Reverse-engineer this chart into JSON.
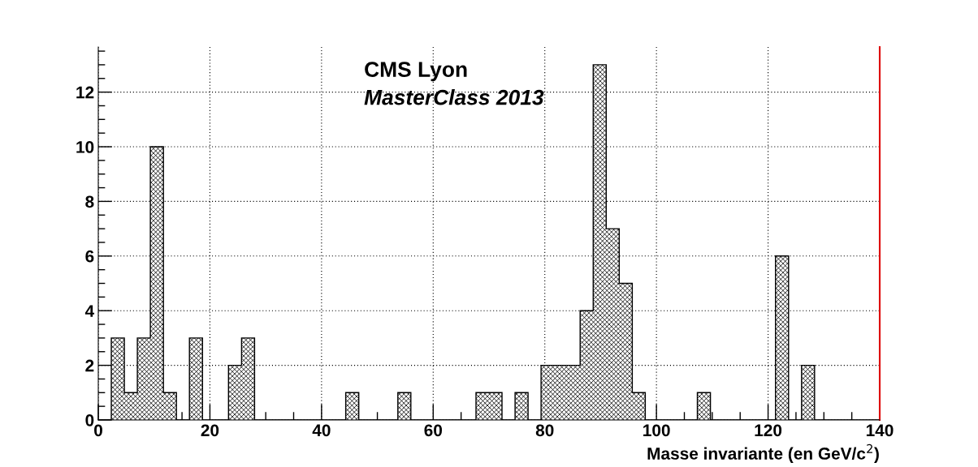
{
  "chart_data": {
    "type": "histogram",
    "xlabel": "Masse invariante (en GeV/c$^{2}$)",
    "annotations": [
      "CMS Lyon",
      "MasterClass 2013"
    ],
    "bins": [
      0,
      2.33,
      4.67,
      7,
      9.33,
      11.67,
      14,
      16.33,
      18.67,
      21,
      23.33,
      25.67,
      28,
      30.33,
      32.67,
      35,
      37.33,
      39.67,
      42,
      44.33,
      46.67,
      49,
      51.33,
      53.67,
      56,
      58.33,
      60.67,
      63,
      65.33,
      67.67,
      70,
      72.33,
      74.67,
      77,
      79.33,
      81.67,
      84,
      86.33,
      88.67,
      91,
      93.33,
      95.67,
      98,
      100.33,
      102.67,
      105,
      107.33,
      109.67,
      112,
      114.33,
      116.67,
      119,
      121.33,
      123.67,
      126,
      128.33,
      130.67,
      133,
      135.33,
      137.67,
      140
    ],
    "values": [
      0,
      3,
      1,
      3,
      10,
      1,
      0,
      3,
      0,
      0,
      2,
      3,
      0,
      0,
      0,
      0,
      0,
      0,
      0,
      1,
      0,
      0,
      0,
      1,
      0,
      0,
      0,
      0,
      0,
      1,
      1,
      0,
      1,
      0,
      2,
      2,
      2,
      4,
      13,
      7,
      5,
      1,
      0,
      0,
      0,
      0,
      1,
      0,
      0,
      0,
      0,
      0,
      6,
      0,
      2,
      0,
      0,
      0,
      0,
      0
    ],
    "color": "#000000",
    "xlim": [
      0,
      140
    ],
    "ylim": [
      0,
      13.65
    ],
    "xticks": [
      0,
      20,
      40,
      60,
      80,
      100,
      120,
      140
    ],
    "yticks": [
      0,
      2,
      4,
      6,
      8,
      10,
      12
    ],
    "grid": true
  }
}
